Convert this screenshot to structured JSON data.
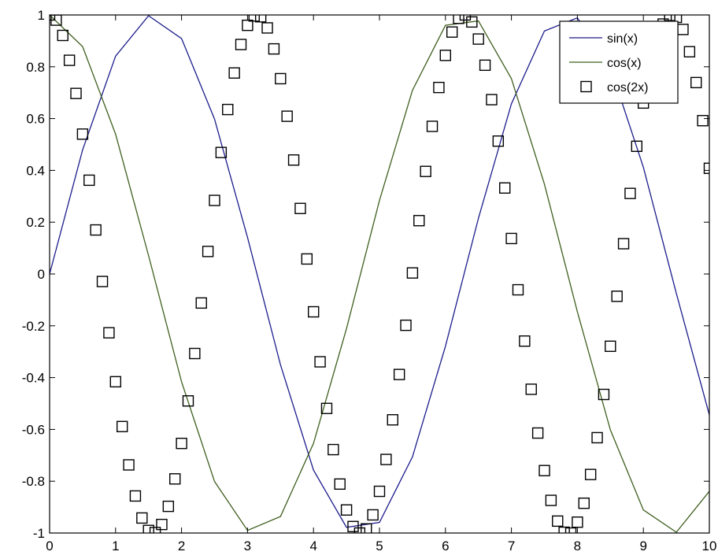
{
  "chart_data": {
    "type": "line",
    "title": "",
    "xlabel": "",
    "ylabel": "",
    "xlim": [
      0,
      10
    ],
    "ylim": [
      -1,
      1
    ],
    "grid": false,
    "legend_position": "top-right",
    "x_ticks": [
      "0",
      "1",
      "2",
      "3",
      "4",
      "5",
      "6",
      "7",
      "8",
      "9",
      "10"
    ],
    "y_ticks": [
      "-1",
      "-0.8",
      "-0.6",
      "-0.4",
      "-0.2",
      "0",
      "0.2",
      "0.4",
      "0.6",
      "0.8",
      "1"
    ],
    "series": [
      {
        "name": "sin(x)",
        "style": "line",
        "color": "#1c1c8c",
        "x": [
          0,
          0.5,
          1,
          1.5,
          2,
          2.5,
          3,
          3.5,
          4,
          4.5,
          5,
          5.5,
          6,
          6.5,
          7,
          7.5,
          8,
          8.5,
          9,
          9.5,
          10
        ],
        "y": [
          0,
          0.479,
          0.841,
          0.997,
          0.909,
          0.598,
          0.141,
          -0.351,
          -0.757,
          -0.978,
          -0.959,
          -0.706,
          -0.279,
          0.215,
          0.657,
          0.938,
          0.989,
          0.798,
          0.412,
          -0.075,
          -0.544
        ]
      },
      {
        "name": "cos(x)",
        "style": "line",
        "color": "#3f5f1f",
        "x": [
          0,
          0.5,
          1,
          1.5,
          2,
          2.5,
          3,
          3.5,
          4,
          4.5,
          5,
          5.5,
          6,
          6.5,
          7,
          7.5,
          8,
          8.5,
          9,
          9.5,
          10
        ],
        "y": [
          1,
          0.878,
          0.54,
          0.071,
          -0.416,
          -0.801,
          -0.99,
          -0.936,
          -0.654,
          -0.211,
          0.284,
          0.709,
          0.96,
          0.977,
          0.754,
          0.347,
          -0.146,
          -0.602,
          -0.911,
          -0.997,
          -0.839
        ]
      },
      {
        "name": "cos(2x)",
        "style": "square-markers",
        "color": "#000000",
        "x": [
          0,
          0.1,
          0.2,
          0.3,
          0.4,
          0.5,
          0.6,
          0.7,
          0.8,
          0.9,
          1,
          1.1,
          1.2,
          1.3,
          1.4,
          1.5,
          1.6,
          1.7,
          1.8,
          1.9,
          2,
          2.1,
          2.2,
          2.3,
          2.4,
          2.5,
          2.6,
          2.7,
          2.8,
          2.9,
          3,
          3.1,
          3.2,
          3.3,
          3.4,
          3.5,
          3.6,
          3.7,
          3.8,
          3.9,
          4,
          4.1,
          4.2,
          4.3,
          4.4,
          4.5,
          4.6,
          4.7,
          4.8,
          4.9,
          5,
          5.1,
          5.2,
          5.3,
          5.4,
          5.5,
          5.6,
          5.7,
          5.8,
          5.9,
          6,
          6.1,
          6.2,
          6.3,
          6.4,
          6.5,
          6.6,
          6.7,
          6.8,
          6.9,
          7,
          7.1,
          7.2,
          7.3,
          7.4,
          7.5,
          7.6,
          7.7,
          7.8,
          7.9,
          8,
          8.1,
          8.2,
          8.3,
          8.4,
          8.5,
          8.6,
          8.7,
          8.8,
          8.9,
          9,
          9.1,
          9.2,
          9.3,
          9.4,
          9.5,
          9.6,
          9.7,
          9.8,
          9.9,
          10
        ],
        "y": [
          1,
          0.98,
          0.921,
          0.825,
          0.697,
          0.54,
          0.362,
          0.17,
          -0.029,
          -0.227,
          -0.416,
          -0.589,
          -0.737,
          -0.857,
          -0.942,
          -0.99,
          -0.998,
          -0.967,
          -0.897,
          -0.791,
          -0.654,
          -0.49,
          -0.307,
          -0.112,
          0.087,
          0.284,
          0.469,
          0.635,
          0.776,
          0.886,
          0.96,
          0.996,
          0.993,
          0.95,
          0.869,
          0.754,
          0.609,
          0.44,
          0.253,
          0.058,
          -0.146,
          -0.339,
          -0.519,
          -0.678,
          -0.811,
          -0.911,
          -0.975,
          -1,
          -0.984,
          -0.93,
          -0.839,
          -0.716,
          -0.563,
          -0.388,
          -0.198,
          0.004,
          0.206,
          0.396,
          0.57,
          0.72,
          0.844,
          0.934,
          0.987,
          1,
          0.973,
          0.907,
          0.806,
          0.673,
          0.513,
          0.332,
          0.137,
          -0.061,
          -0.259,
          -0.445,
          -0.614,
          -0.759,
          -0.874,
          -0.954,
          -0.997,
          -1,
          -0.958,
          -0.885,
          -0.774,
          -0.632,
          -0.465,
          -0.279,
          -0.086,
          0.117,
          0.311,
          0.493,
          0.66,
          0.79,
          0.893,
          0.965,
          0.998,
          0.991,
          0.944,
          0.858,
          0.739,
          0.592,
          0.408
        ]
      }
    ]
  }
}
